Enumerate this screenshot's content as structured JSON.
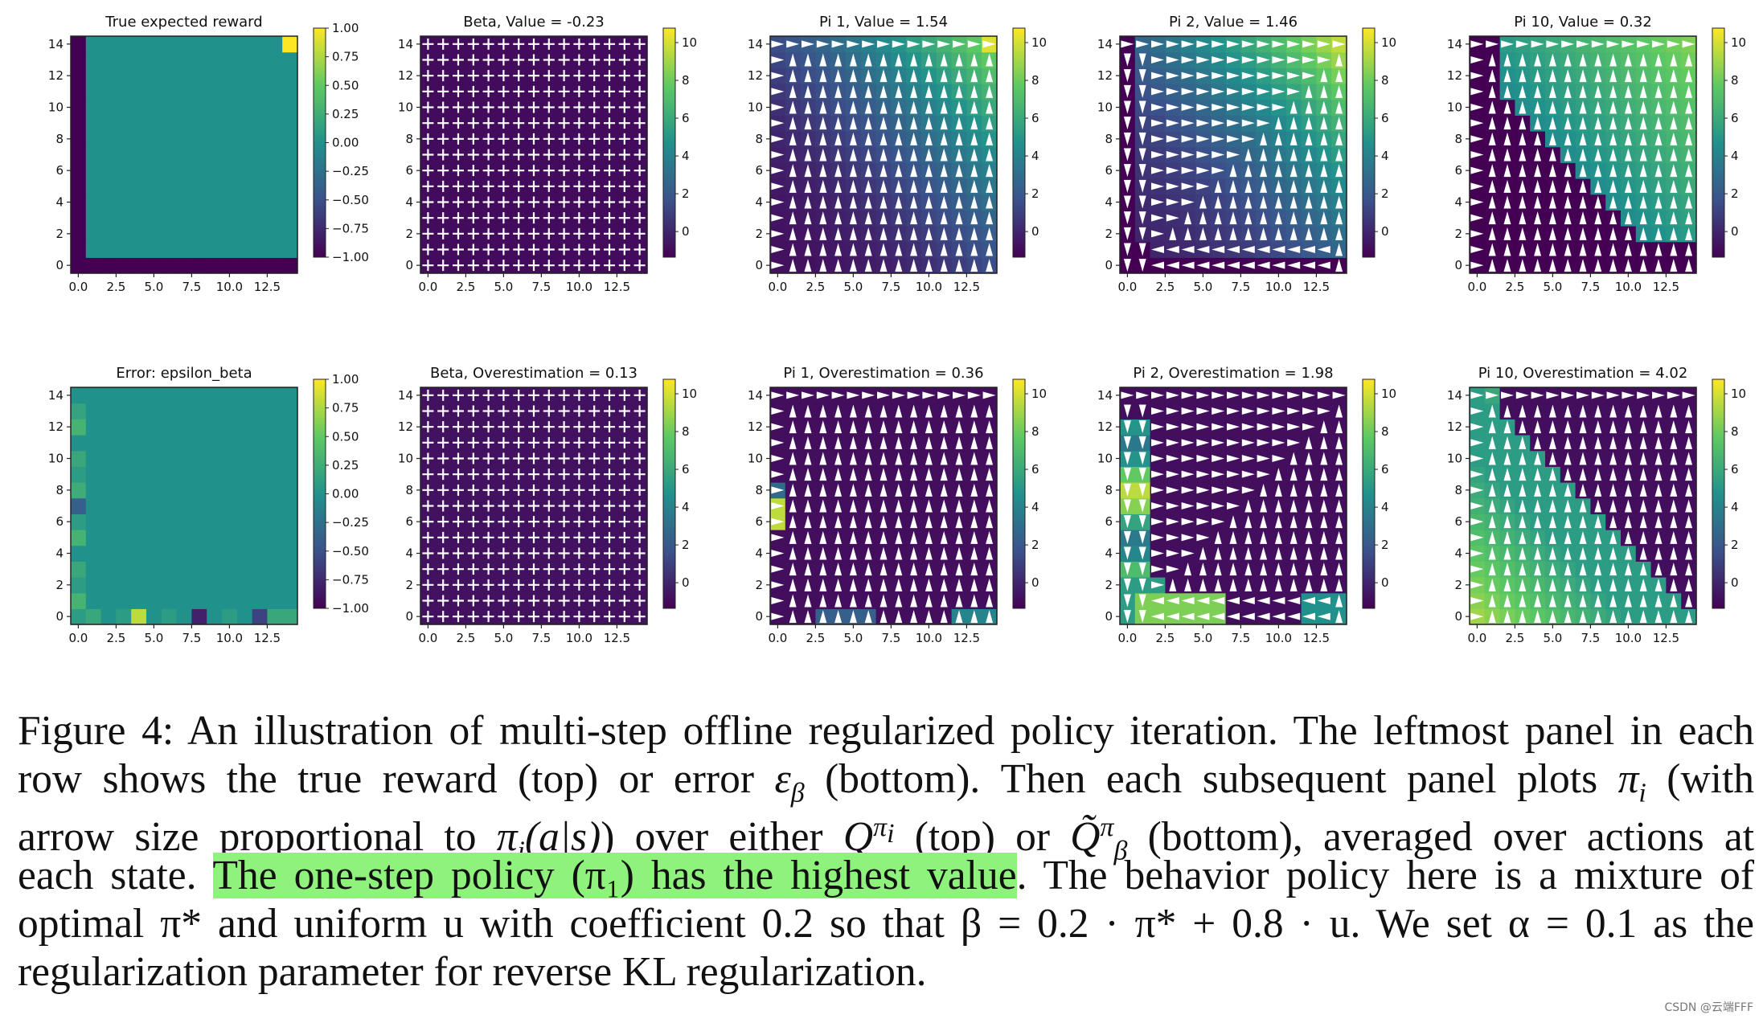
{
  "figure": {
    "panels": [
      {
        "title": "True expected reward",
        "kind": "reward",
        "cbar_ticks": [
          "1.00",
          "0.75",
          "0.50",
          "0.25",
          "0.00",
          "−0.25",
          "−0.50",
          "−0.75",
          "−1.00"
        ]
      },
      {
        "title": "Beta, Value = -0.23",
        "kind": "beta_v",
        "cbar_ticks": [
          "10",
          "8",
          "6",
          "4",
          "2",
          "0"
        ]
      },
      {
        "title": "Pi 1, Value = 1.54",
        "kind": "pi1_v",
        "cbar_ticks": [
          "10",
          "8",
          "6",
          "4",
          "2",
          "0"
        ]
      },
      {
        "title": "Pi 2, Value = 1.46",
        "kind": "pi2_v",
        "cbar_ticks": [
          "10",
          "8",
          "6",
          "4",
          "2",
          "0"
        ]
      },
      {
        "title": "Pi 10, Value = 0.32",
        "kind": "pi10_v",
        "cbar_ticks": [
          "10",
          "8",
          "6",
          "4",
          "2",
          "0"
        ]
      },
      {
        "title": "Error: epsilon_beta",
        "kind": "error",
        "cbar_ticks": [
          "1.00",
          "0.75",
          "0.50",
          "0.25",
          "0.00",
          "−0.25",
          "−0.50",
          "−0.75",
          "−1.00"
        ]
      },
      {
        "title": "Beta, Overestimation = 0.13",
        "kind": "beta_o",
        "cbar_ticks": [
          "10",
          "8",
          "6",
          "4",
          "2",
          "0"
        ]
      },
      {
        "title": "Pi 1, Overestimation = 0.36",
        "kind": "pi1_o",
        "cbar_ticks": [
          "10",
          "8",
          "6",
          "4",
          "2",
          "0"
        ]
      },
      {
        "title": "Pi 2, Overestimation = 1.98",
        "kind": "pi2_o",
        "cbar_ticks": [
          "10",
          "8",
          "6",
          "4",
          "2",
          "0"
        ]
      },
      {
        "title": "Pi 10, Overestimation = 4.02",
        "kind": "pi10_o",
        "cbar_ticks": [
          "10",
          "8",
          "6",
          "4",
          "2",
          "0"
        ]
      }
    ],
    "y_ticks": [
      "14",
      "12",
      "10",
      "8",
      "6",
      "4",
      "2",
      "0"
    ],
    "x_ticks": [
      "0.0",
      "2.5",
      "5.0",
      "7.5",
      "10.0",
      "12.5"
    ],
    "colormap": [
      "#440154",
      "#3b528b",
      "#21918c",
      "#5ec962",
      "#fde725"
    ]
  },
  "caption": {
    "l1": "Figure 4: An illustration of multi-step offline regularized policy iteration. The leftmost panel in each",
    "l2a": "row shows the true reward (top) or error ",
    "l2b": " (bottom). Then each subsequent panel plots ",
    "l2c": " (with",
    "l3a": "arrow size proportional to ",
    "l3b": ") over either ",
    "l3c": " (top) or ",
    "l3d": " (bottom), averaged over actions at",
    "l4a": "each state. ",
    "l4hl": "The one-step policy (π₁) has the highest value",
    "l4b": ". The behavior policy here is a mixture of",
    "l5": "optimal π* and uniform u with coefficient 0.2 so that β = 0.2 · π* + 0.8 · u. We set α = 0.1 as the",
    "l6": "regularization parameter for reverse KL regularization.",
    "sym_eps": "εβ",
    "sym_pii": "πi",
    "sym_pias": "πi(a|s)",
    "sym_qpi": "Qπi",
    "sym_qtilde": "Q̃πβ"
  },
  "watermark": "CSDN @云端FFF"
}
